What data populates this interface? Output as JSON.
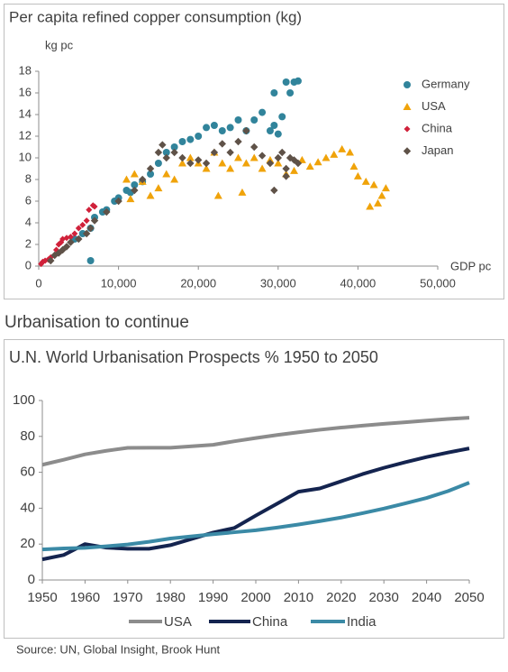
{
  "section_title": "Urbanisation to continue",
  "source": "Source: UN, Global Insight, Brook Hunt",
  "chart_data": [
    {
      "type": "scatter",
      "title": "Per capita refined copper consumption (kg)",
      "y_label": "kg pc",
      "x_label": "GDP pc",
      "xlim": [
        0,
        50000
      ],
      "xticks": [
        0,
        {
          "value": 10000,
          "label": "10,000"
        },
        {
          "value": 20000,
          "label": "20,000"
        },
        {
          "value": 30000,
          "label": "30,000"
        },
        {
          "value": 40000,
          "label": "40,000"
        },
        {
          "value": 50000,
          "label": "50,000"
        }
      ],
      "ylim": [
        0,
        18
      ],
      "yticks": [
        0,
        2,
        4,
        6,
        8,
        10,
        12,
        14,
        16,
        18
      ],
      "grid": false,
      "legend": "right",
      "series": [
        {
          "name": "Germany",
          "color": "#31849b",
          "marker": "circle",
          "x": [
            6500,
            4500,
            5500,
            6500,
            7000,
            8000,
            8500,
            9500,
            10000,
            11000,
            11500,
            12000,
            13000,
            14000,
            15000,
            16000,
            17000,
            18000,
            19000,
            20000,
            21000,
            22000,
            23000,
            24000,
            25000,
            26000,
            27000,
            28000,
            29000,
            29500,
            29500,
            30500,
            31000,
            31500,
            32000,
            32500,
            30000
          ],
          "values": [
            0.5,
            2.5,
            3,
            3.5,
            4.5,
            5,
            5.2,
            6,
            6.3,
            7,
            6.8,
            7.5,
            7.8,
            8.5,
            9.5,
            10.5,
            11,
            11.5,
            11.7,
            12,
            12.8,
            13,
            12.5,
            12.8,
            13.5,
            12.5,
            13.5,
            14.2,
            12.5,
            13,
            16,
            13.8,
            17,
            16,
            17,
            17.1,
            12.2
          ]
        },
        {
          "name": "USA",
          "color": "#f0a30a",
          "marker": "triangle",
          "x": [
            11500,
            11000,
            12000,
            13000,
            14000,
            15000,
            16000,
            17000,
            18000,
            19000,
            20000,
            21000,
            22000,
            23000,
            22500,
            24000,
            25000,
            26000,
            27000,
            25500,
            28000,
            29000,
            30000,
            31000,
            32000,
            33000,
            34000,
            35000,
            36000,
            37000,
            38000,
            39000,
            39500,
            40000,
            41000,
            42000,
            42500,
            43000,
            43500,
            41500
          ],
          "values": [
            6.2,
            8,
            8.5,
            7.8,
            6.5,
            7.2,
            8.5,
            8,
            9.5,
            10,
            9.5,
            9,
            10.5,
            9.5,
            6.5,
            9,
            10,
            9.5,
            10,
            6.8,
            9,
            9.8,
            9.5,
            8.5,
            8.8,
            9.8,
            9.2,
            9.6,
            10,
            10.3,
            10.8,
            10.5,
            9.2,
            8.3,
            7.8,
            7.5,
            5.8,
            6.5,
            7.2,
            5.5
          ]
        },
        {
          "name": "China",
          "color": "#d0213a",
          "marker": "diamond-small",
          "x": [
            300,
            500,
            800,
            1200,
            1500,
            2000,
            2200,
            2500,
            2800,
            3000,
            3500,
            4000,
            4500,
            5000,
            5500,
            6000,
            6300,
            6800,
            7000
          ],
          "values": [
            0.2,
            0.4,
            0.5,
            0.6,
            0.8,
            1,
            1.5,
            2,
            2.2,
            2.5,
            2.6,
            2.7,
            3,
            3.5,
            3.8,
            4.2,
            5.2,
            5.6,
            5.5
          ]
        },
        {
          "name": "Japan",
          "color": "#5f5248",
          "marker": "diamond",
          "x": [
            1500,
            2000,
            2500,
            3000,
            3500,
            4000,
            5000,
            6000,
            6500,
            7000,
            8500,
            10000,
            12000,
            13000,
            14000,
            15000,
            15500,
            16000,
            17000,
            18000,
            19000,
            20000,
            21000,
            22000,
            23000,
            24000,
            25000,
            26000,
            27000,
            28000,
            29000,
            30000,
            30500,
            31000,
            31500,
            32000,
            29500,
            31000,
            32500
          ],
          "values": [
            0.5,
            1,
            1.2,
            1.5,
            1.8,
            2.2,
            2.5,
            3,
            3.5,
            4.2,
            5,
            6,
            7,
            8,
            9,
            10.5,
            11.2,
            10,
            10.5,
            10,
            9.5,
            9.8,
            9.5,
            10.5,
            11.3,
            10.5,
            11.5,
            12.5,
            11,
            10.2,
            9.5,
            10,
            10.5,
            9,
            10,
            9.8,
            7,
            8.3,
            9.5
          ]
        }
      ]
    },
    {
      "type": "line",
      "title": "U.N. World Urbanisation Prospects % 1950 to 2050",
      "x": [
        1950,
        1955,
        1960,
        1965,
        1970,
        1975,
        1980,
        1985,
        1990,
        1995,
        2000,
        2005,
        2010,
        2015,
        2020,
        2025,
        2030,
        2035,
        2040,
        2045,
        2050
      ],
      "xlim": [
        1950,
        2050
      ],
      "xticks": [
        1950,
        1960,
        1970,
        1980,
        1990,
        2000,
        2010,
        2020,
        2030,
        2040,
        2050
      ],
      "ylim": [
        0,
        100
      ],
      "yticks": [
        0,
        20,
        40,
        60,
        80,
        100
      ],
      "grid": false,
      "legend": "bottom",
      "series": [
        {
          "name": "USA",
          "color": "#8c8c8c",
          "values": [
            64.2,
            67,
            70,
            72,
            73.6,
            73.7,
            73.7,
            74.5,
            75.3,
            77.3,
            79.1,
            80.8,
            82.3,
            83.7,
            84.9,
            86,
            87,
            87.9,
            88.8,
            89.7,
            90.4
          ]
        },
        {
          "name": "China",
          "color": "#14244f",
          "values": [
            11.5,
            13.9,
            20,
            18,
            17.4,
            17.4,
            19.4,
            22.9,
            26.4,
            29,
            35.9,
            42.5,
            49.2,
            51,
            55,
            59,
            62.5,
            65.6,
            68.5,
            71,
            73.3
          ]
        },
        {
          "name": "India",
          "color": "#3b8aa6",
          "values": [
            17,
            17.6,
            17.9,
            18.8,
            19.8,
            21.3,
            23.1,
            24.3,
            25.5,
            26.6,
            27.7,
            29.2,
            30.9,
            32.8,
            34.8,
            37.2,
            39.8,
            42.7,
            45.7,
            49.5,
            54.2
          ]
        }
      ]
    }
  ]
}
